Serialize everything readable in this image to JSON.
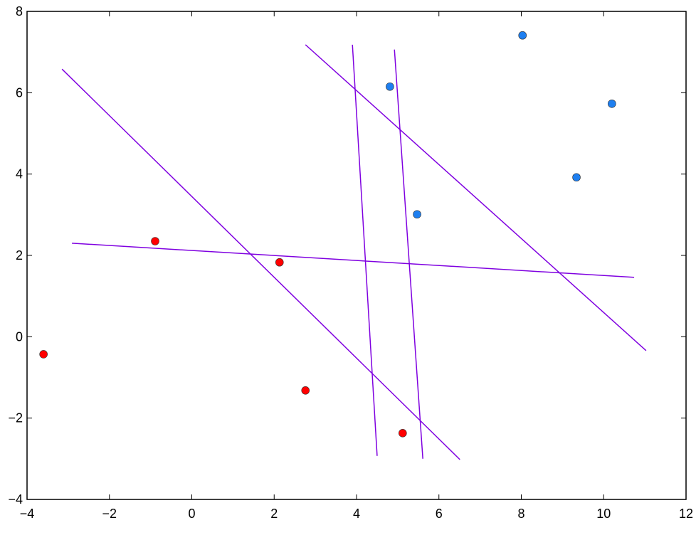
{
  "chart_data": {
    "type": "scatter",
    "xlim": [
      -4,
      12
    ],
    "ylim": [
      -4,
      8
    ],
    "xticks": [
      {
        "value": -4,
        "label": "−4"
      },
      {
        "value": -2,
        "label": "−2"
      },
      0,
      2,
      4,
      6,
      8,
      10,
      12
    ],
    "yticks": [
      {
        "value": -4,
        "label": "−4"
      },
      {
        "value": -2,
        "label": "−2"
      },
      0,
      2,
      4,
      6,
      8
    ],
    "grid": false,
    "series": [
      {
        "mode": "markers",
        "color": "#ff0000",
        "x": [
          -3.6,
          -0.89,
          2.13,
          2.76,
          5.12
        ],
        "y": [
          -0.43,
          2.35,
          1.83,
          -1.32,
          -2.37
        ]
      },
      {
        "mode": "markers",
        "color": "#1e7ff0",
        "x": [
          4.81,
          5.47,
          8.03,
          9.34,
          10.2
        ],
        "y": [
          6.15,
          3.01,
          7.41,
          3.92,
          5.73
        ]
      },
      {
        "mode": "line",
        "color": "#7f00e0",
        "x": [
          -3.15,
          6.51
        ],
        "y": [
          6.58,
          -3.02
        ]
      },
      {
        "mode": "line",
        "color": "#7f00e0",
        "x": [
          -2.91,
          10.74
        ],
        "y": [
          2.3,
          1.46
        ]
      },
      {
        "mode": "line",
        "color": "#7f00e0",
        "x": [
          2.76,
          11.03
        ],
        "y": [
          7.18,
          -0.34
        ]
      },
      {
        "mode": "line",
        "color": "#7f00e0",
        "x": [
          3.9,
          4.5
        ],
        "y": [
          7.18,
          -2.93
        ]
      },
      {
        "mode": "line",
        "color": "#7f00e0",
        "x": [
          4.92,
          5.61
        ],
        "y": [
          7.06,
          -3.0
        ]
      }
    ]
  }
}
